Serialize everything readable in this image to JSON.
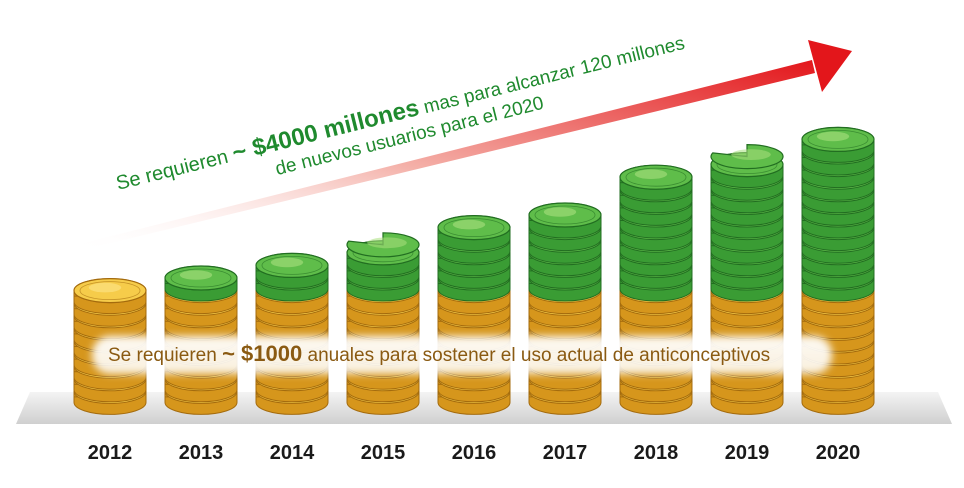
{
  "headline": {
    "prefix": "Se requieren ",
    "approx": "~ ",
    "amount": "$4000 millones",
    "suffix": " mas para alcanzar 120 millones",
    "line2": "de nuevos usuarios para el 2020"
  },
  "band": {
    "prefix": "Se requieren ",
    "approx": "~ ",
    "amount": "$1000",
    "suffix": " anuales para sostener el uso actual de anticonceptivos"
  },
  "colors": {
    "gold": "#e0a21c",
    "green": "#3aa53a",
    "arrow": "#e62020",
    "text_green": "#1f8a2e"
  },
  "chart_data": {
    "type": "bar",
    "categories": [
      "2012",
      "2013",
      "2014",
      "2015",
      "2016",
      "2017",
      "2018",
      "2019",
      "2020"
    ],
    "series": [
      {
        "values": [
          9,
          9,
          9,
          9,
          9,
          9,
          9,
          9,
          9
        ]
      },
      {
        "values": [
          0,
          1,
          2,
          3.5,
          5,
          6,
          9,
          10.5,
          12
        ]
      }
    ],
    "stack_colors": [
      "gold",
      "green"
    ],
    "trend_arrow": true
  }
}
